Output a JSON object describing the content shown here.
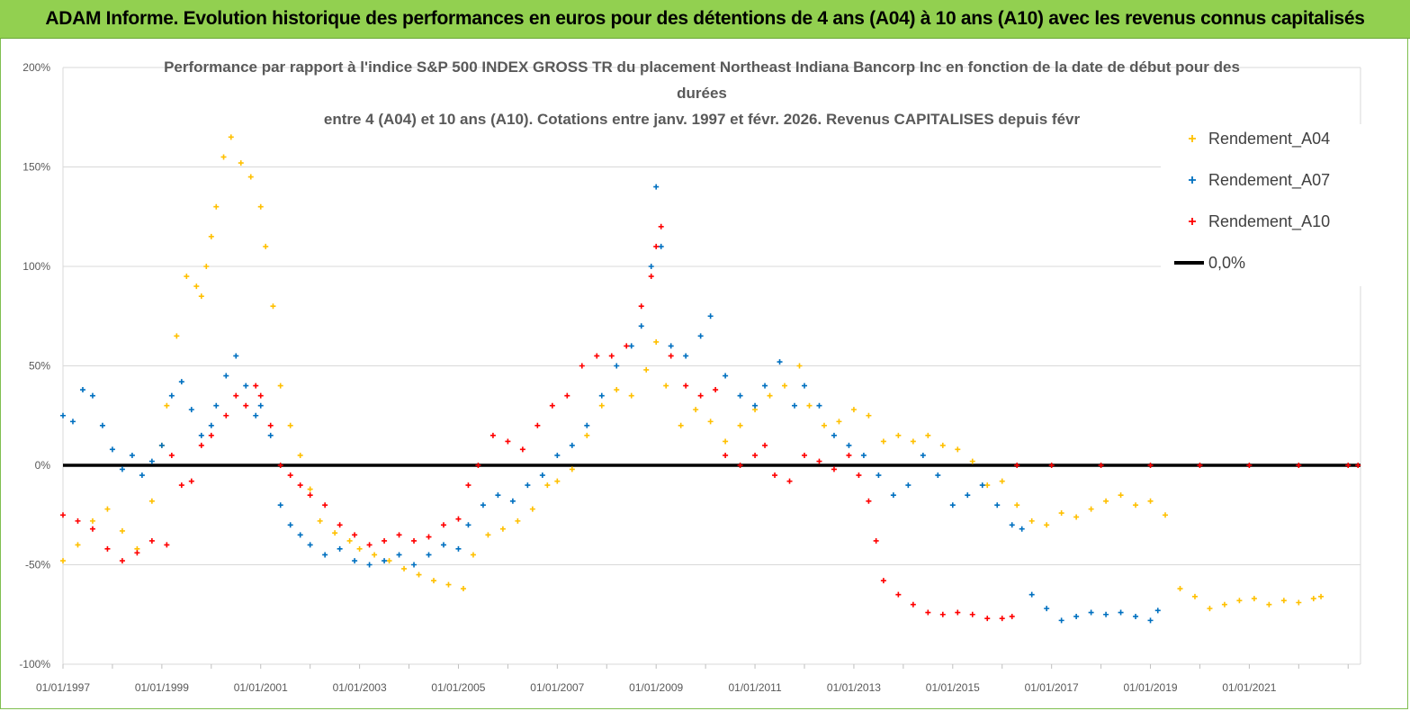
{
  "banner": {
    "title": "ADAM Informe. Evolution historique des performances en euros pour des détentions de 4 ans (A04) à 10 ans (A10) avec les revenus connus capitalisés"
  },
  "colors": {
    "banner_bg": "#92d050",
    "A04": "#ffc000",
    "A07": "#0070c0",
    "A10": "#ff0000",
    "zero_line": "#000000",
    "grid": "#d9d9d9",
    "text": "#595959"
  },
  "chart_data": {
    "type": "scatter",
    "title_lines": [
      "Performance par rapport à l'indice S&P  500 INDEX GROSS TR  du placement Northeast Indiana Bancorp Inc en fonction de la date de début pour des",
      "durées",
      "entre 4 (A04) et 10 ans (A10). Cotations entre janv. 1997 et févr. 2026. Revenus CAPITALISES depuis févr"
    ],
    "xlabel": "",
    "ylabel": "",
    "x_range": [
      1997.0,
      2023.25
    ],
    "ylim": [
      -100,
      200
    ],
    "y_ticks": [
      {
        "value": 200,
        "label": "200%"
      },
      {
        "value": 150,
        "label": "150%"
      },
      {
        "value": 100,
        "label": "100%"
      },
      {
        "value": 50,
        "label": "50%"
      },
      {
        "value": 0,
        "label": "0%"
      },
      {
        "value": -50,
        "label": "-50%"
      },
      {
        "value": -100,
        "label": "-100%"
      }
    ],
    "x_ticks": [
      {
        "value": 1997,
        "label": "01/01/1997"
      },
      {
        "value": 1999,
        "label": "01/01/1999"
      },
      {
        "value": 2001,
        "label": "01/01/2001"
      },
      {
        "value": 2003,
        "label": "01/01/2003"
      },
      {
        "value": 2005,
        "label": "01/01/2005"
      },
      {
        "value": 2007,
        "label": "01/01/2007"
      },
      {
        "value": 2009,
        "label": "01/01/2009"
      },
      {
        "value": 2011,
        "label": "01/01/2011"
      },
      {
        "value": 2013,
        "label": "01/01/2013"
      },
      {
        "value": 2015,
        "label": "01/01/2015"
      },
      {
        "value": 2017,
        "label": "01/01/2017"
      },
      {
        "value": 2019,
        "label": "01/01/2019"
      },
      {
        "value": 2021,
        "label": "01/01/2021"
      }
    ],
    "grid": "horizontal",
    "legend_position": "right",
    "series": [
      {
        "name": "Rendement_A04",
        "color": "#ffc000",
        "marker": "+",
        "points": [
          [
            1997.0,
            -48
          ],
          [
            1997.3,
            -40
          ],
          [
            1997.6,
            -28
          ],
          [
            1997.9,
            -22
          ],
          [
            1998.2,
            -33
          ],
          [
            1998.5,
            -42
          ],
          [
            1998.8,
            -18
          ],
          [
            1999.0,
            10
          ],
          [
            1999.1,
            30
          ],
          [
            1999.3,
            65
          ],
          [
            1999.5,
            95
          ],
          [
            1999.7,
            90
          ],
          [
            1999.8,
            85
          ],
          [
            1999.9,
            100
          ],
          [
            2000.0,
            115
          ],
          [
            2000.1,
            130
          ],
          [
            2000.25,
            155
          ],
          [
            2000.4,
            165
          ],
          [
            2000.6,
            152
          ],
          [
            2000.8,
            145
          ],
          [
            2001.0,
            130
          ],
          [
            2001.1,
            110
          ],
          [
            2001.25,
            80
          ],
          [
            2001.4,
            40
          ],
          [
            2001.6,
            20
          ],
          [
            2001.8,
            5
          ],
          [
            2002.0,
            -12
          ],
          [
            2002.2,
            -28
          ],
          [
            2002.5,
            -34
          ],
          [
            2002.8,
            -38
          ],
          [
            2003.0,
            -42
          ],
          [
            2003.3,
            -45
          ],
          [
            2003.6,
            -48
          ],
          [
            2003.9,
            -52
          ],
          [
            2004.2,
            -55
          ],
          [
            2004.5,
            -58
          ],
          [
            2004.8,
            -60
          ],
          [
            2005.1,
            -62
          ],
          [
            2005.3,
            -45
          ],
          [
            2005.6,
            -35
          ],
          [
            2005.9,
            -32
          ],
          [
            2006.2,
            -28
          ],
          [
            2006.5,
            -22
          ],
          [
            2006.8,
            -10
          ],
          [
            2007.0,
            -8
          ],
          [
            2007.3,
            -2
          ],
          [
            2007.6,
            15
          ],
          [
            2007.9,
            30
          ],
          [
            2008.2,
            38
          ],
          [
            2008.5,
            35
          ],
          [
            2008.8,
            48
          ],
          [
            2009.0,
            62
          ],
          [
            2009.2,
            40
          ],
          [
            2009.5,
            20
          ],
          [
            2009.8,
            28
          ],
          [
            2010.1,
            22
          ],
          [
            2010.4,
            12
          ],
          [
            2010.7,
            20
          ],
          [
            2011.0,
            28
          ],
          [
            2011.3,
            35
          ],
          [
            2011.6,
            40
          ],
          [
            2011.9,
            50
          ],
          [
            2012.1,
            30
          ],
          [
            2012.4,
            20
          ],
          [
            2012.7,
            22
          ],
          [
            2013.0,
            28
          ],
          [
            2013.3,
            25
          ],
          [
            2013.6,
            12
          ],
          [
            2013.9,
            15
          ],
          [
            2014.2,
            12
          ],
          [
            2014.5,
            15
          ],
          [
            2014.8,
            10
          ],
          [
            2015.1,
            8
          ],
          [
            2015.4,
            2
          ],
          [
            2015.7,
            -10
          ],
          [
            2016.0,
            -8
          ],
          [
            2016.3,
            -20
          ],
          [
            2016.6,
            -28
          ],
          [
            2016.9,
            -30
          ],
          [
            2017.2,
            -24
          ],
          [
            2017.5,
            -26
          ],
          [
            2017.8,
            -22
          ],
          [
            2018.1,
            -18
          ],
          [
            2018.4,
            -15
          ],
          [
            2018.7,
            -20
          ],
          [
            2019.0,
            -18
          ],
          [
            2019.3,
            -25
          ],
          [
            2019.6,
            -62
          ],
          [
            2019.9,
            -66
          ],
          [
            2020.2,
            -72
          ],
          [
            2020.5,
            -70
          ],
          [
            2020.8,
            -68
          ],
          [
            2021.1,
            -67
          ],
          [
            2021.4,
            -70
          ],
          [
            2021.7,
            -68
          ],
          [
            2022.0,
            -69
          ],
          [
            2022.3,
            -67
          ],
          [
            2022.45,
            -66
          ]
        ]
      },
      {
        "name": "Rendement_A07",
        "color": "#0070c0",
        "marker": "+",
        "points": [
          [
            1997.0,
            25
          ],
          [
            1997.2,
            22
          ],
          [
            1997.4,
            38
          ],
          [
            1997.6,
            35
          ],
          [
            1997.8,
            20
          ],
          [
            1998.0,
            8
          ],
          [
            1998.2,
            -2
          ],
          [
            1998.4,
            5
          ],
          [
            1998.6,
            -5
          ],
          [
            1998.8,
            2
          ],
          [
            1999.0,
            10
          ],
          [
            1999.2,
            35
          ],
          [
            1999.4,
            42
          ],
          [
            1999.6,
            28
          ],
          [
            1999.8,
            15
          ],
          [
            2000.0,
            20
          ],
          [
            2000.1,
            30
          ],
          [
            2000.3,
            45
          ],
          [
            2000.5,
            55
          ],
          [
            2000.7,
            40
          ],
          [
            2000.9,
            25
          ],
          [
            2001.0,
            30
          ],
          [
            2001.2,
            15
          ],
          [
            2001.4,
            -20
          ],
          [
            2001.6,
            -30
          ],
          [
            2001.8,
            -35
          ],
          [
            2002.0,
            -40
          ],
          [
            2002.3,
            -45
          ],
          [
            2002.6,
            -42
          ],
          [
            2002.9,
            -48
          ],
          [
            2003.2,
            -50
          ],
          [
            2003.5,
            -48
          ],
          [
            2003.8,
            -45
          ],
          [
            2004.1,
            -50
          ],
          [
            2004.4,
            -45
          ],
          [
            2004.7,
            -40
          ],
          [
            2005.0,
            -42
          ],
          [
            2005.2,
            -30
          ],
          [
            2005.5,
            -20
          ],
          [
            2005.8,
            -15
          ],
          [
            2006.1,
            -18
          ],
          [
            2006.4,
            -10
          ],
          [
            2006.7,
            -5
          ],
          [
            2007.0,
            5
          ],
          [
            2007.3,
            10
          ],
          [
            2007.6,
            20
          ],
          [
            2007.9,
            35
          ],
          [
            2008.2,
            50
          ],
          [
            2008.5,
            60
          ],
          [
            2008.7,
            70
          ],
          [
            2008.9,
            100
          ],
          [
            2009.0,
            140
          ],
          [
            2009.1,
            110
          ],
          [
            2009.3,
            60
          ],
          [
            2009.6,
            55
          ],
          [
            2009.9,
            65
          ],
          [
            2010.1,
            75
          ],
          [
            2010.4,
            45
          ],
          [
            2010.7,
            35
          ],
          [
            2011.0,
            30
          ],
          [
            2011.2,
            40
          ],
          [
            2011.5,
            52
          ],
          [
            2011.8,
            30
          ],
          [
            2012.0,
            40
          ],
          [
            2012.3,
            30
          ],
          [
            2012.6,
            15
          ],
          [
            2012.9,
            10
          ],
          [
            2013.2,
            5
          ],
          [
            2013.5,
            -5
          ],
          [
            2013.8,
            -15
          ],
          [
            2014.1,
            -10
          ],
          [
            2014.4,
            5
          ],
          [
            2014.7,
            -5
          ],
          [
            2015.0,
            -20
          ],
          [
            2015.3,
            -15
          ],
          [
            2015.6,
            -10
          ],
          [
            2015.9,
            -20
          ],
          [
            2016.2,
            -30
          ],
          [
            2016.4,
            -32
          ],
          [
            2016.6,
            -65
          ],
          [
            2016.9,
            -72
          ],
          [
            2017.2,
            -78
          ],
          [
            2017.5,
            -76
          ],
          [
            2017.8,
            -74
          ],
          [
            2018.1,
            -75
          ],
          [
            2018.4,
            -74
          ],
          [
            2018.7,
            -76
          ],
          [
            2019.0,
            -78
          ],
          [
            2019.15,
            -73
          ]
        ]
      },
      {
        "name": "Rendement_A10",
        "color": "#ff0000",
        "marker": "+",
        "points": [
          [
            1997.0,
            -25
          ],
          [
            1997.3,
            -28
          ],
          [
            1997.6,
            -32
          ],
          [
            1997.9,
            -42
          ],
          [
            1998.2,
            -48
          ],
          [
            1998.5,
            -44
          ],
          [
            1998.8,
            -38
          ],
          [
            1999.1,
            -40
          ],
          [
            1999.2,
            5
          ],
          [
            1999.4,
            -10
          ],
          [
            1999.6,
            -8
          ],
          [
            1999.8,
            10
          ],
          [
            2000.0,
            15
          ],
          [
            2000.3,
            25
          ],
          [
            2000.5,
            35
          ],
          [
            2000.7,
            30
          ],
          [
            2000.9,
            40
          ],
          [
            2001.0,
            35
          ],
          [
            2001.2,
            20
          ],
          [
            2001.4,
            0
          ],
          [
            2001.6,
            -5
          ],
          [
            2001.8,
            -10
          ],
          [
            2002.0,
            -15
          ],
          [
            2002.3,
            -20
          ],
          [
            2002.6,
            -30
          ],
          [
            2002.9,
            -35
          ],
          [
            2003.2,
            -40
          ],
          [
            2003.5,
            -38
          ],
          [
            2003.8,
            -35
          ],
          [
            2004.1,
            -38
          ],
          [
            2004.4,
            -36
          ],
          [
            2004.7,
            -30
          ],
          [
            2005.0,
            -27
          ],
          [
            2005.2,
            -10
          ],
          [
            2005.4,
            0
          ],
          [
            2005.7,
            15
          ],
          [
            2006.0,
            12
          ],
          [
            2006.3,
            8
          ],
          [
            2006.6,
            20
          ],
          [
            2006.9,
            30
          ],
          [
            2007.2,
            35
          ],
          [
            2007.5,
            50
          ],
          [
            2007.8,
            55
          ],
          [
            2008.1,
            55
          ],
          [
            2008.4,
            60
          ],
          [
            2008.7,
            80
          ],
          [
            2008.9,
            95
          ],
          [
            2009.0,
            110
          ],
          [
            2009.1,
            120
          ],
          [
            2009.3,
            55
          ],
          [
            2009.6,
            40
          ],
          [
            2009.9,
            35
          ],
          [
            2010.2,
            38
          ],
          [
            2010.4,
            5
          ],
          [
            2010.7,
            0
          ],
          [
            2011.0,
            5
          ],
          [
            2011.2,
            10
          ],
          [
            2011.4,
            -5
          ],
          [
            2011.7,
            -8
          ],
          [
            2012.0,
            5
          ],
          [
            2012.3,
            2
          ],
          [
            2012.6,
            -2
          ],
          [
            2012.9,
            5
          ],
          [
            2013.1,
            -5
          ],
          [
            2013.3,
            -18
          ],
          [
            2013.45,
            -38
          ],
          [
            2013.6,
            -58
          ],
          [
            2013.9,
            -65
          ],
          [
            2014.2,
            -70
          ],
          [
            2014.5,
            -74
          ],
          [
            2014.8,
            -75
          ],
          [
            2015.1,
            -74
          ],
          [
            2015.4,
            -75
          ],
          [
            2015.7,
            -77
          ],
          [
            2016.0,
            -77
          ],
          [
            2016.2,
            -76
          ],
          [
            2016.3,
            0
          ],
          [
            2017.0,
            0
          ],
          [
            2018.0,
            0
          ],
          [
            2019.0,
            0
          ],
          [
            2020.0,
            0
          ],
          [
            2021.0,
            0
          ],
          [
            2022.0,
            0
          ],
          [
            2023.0,
            0
          ],
          [
            2023.2,
            0
          ]
        ]
      }
    ],
    "reference_line": {
      "name": "0,0%",
      "value": 0,
      "color": "#000000"
    }
  }
}
